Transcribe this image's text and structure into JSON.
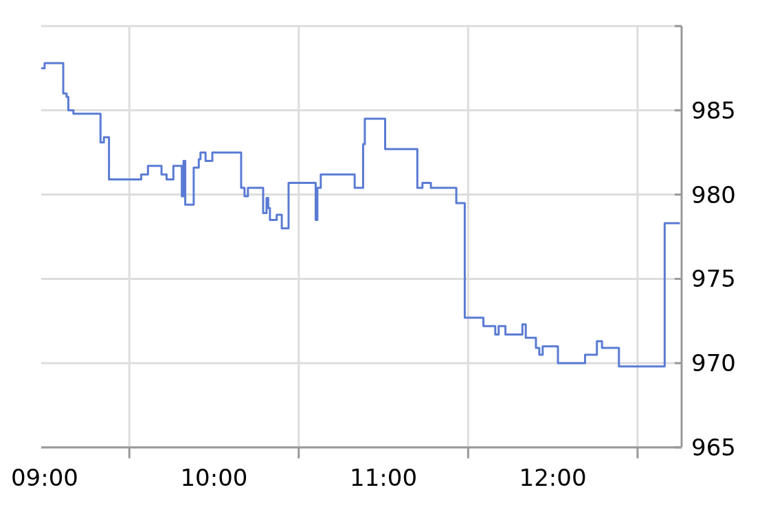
{
  "chart_data": {
    "type": "step",
    "x": [
      8.98,
      9.0,
      9.11,
      9.13,
      9.14,
      9.17,
      9.33,
      9.35,
      9.38,
      9.57,
      9.61,
      9.69,
      9.72,
      9.76,
      9.81,
      9.82,
      9.83,
      9.88,
      9.91,
      9.92,
      9.95,
      9.99,
      10.16,
      10.18,
      10.2,
      10.25,
      10.29,
      10.31,
      10.32,
      10.33,
      10.37,
      10.4,
      10.44,
      10.46,
      10.6,
      10.61,
      10.63,
      10.68,
      10.83,
      10.88,
      10.89,
      11.01,
      11.2,
      11.23,
      11.28,
      11.43,
      11.48,
      11.59,
      11.66,
      11.68,
      11.72,
      11.82,
      11.84,
      11.9,
      11.92,
      11.94,
      12.03,
      12.19,
      12.26,
      12.29,
      12.39,
      12.66,
      12.75
    ],
    "series": [
      {
        "color": "#5a7bd4",
        "values": [
          987.5,
          987.8,
          986.0,
          985.8,
          985.0,
          984.8,
          983.1,
          983.4,
          980.9,
          981.2,
          981.7,
          981.2,
          980.9,
          981.7,
          979.9,
          982.0,
          979.4,
          981.6,
          982.1,
          982.5,
          982.0,
          982.5,
          980.4,
          979.9,
          980.4,
          980.4,
          978.9,
          979.8,
          979.2,
          978.5,
          978.8,
          978.0,
          980.7,
          980.7,
          978.5,
          980.4,
          981.2,
          981.2,
          980.4,
          983.0,
          984.5,
          982.7,
          980.4,
          980.7,
          980.4,
          979.5,
          972.7,
          972.2,
          971.7,
          972.2,
          971.7,
          972.3,
          971.5,
          970.9,
          970.5,
          971.0,
          970.0,
          970.5,
          971.3,
          970.9,
          969.8,
          978.3,
          978.3
        ]
      }
    ],
    "xlim": [
      8.98,
      12.76
    ],
    "xticks": [
      {
        "value": 9,
        "label": "09:00"
      },
      {
        "value": 9.5,
        "label": null
      },
      {
        "value": 10,
        "label": "10:00"
      },
      {
        "value": 10.5,
        "label": null
      },
      {
        "value": 11,
        "label": "11:00"
      },
      {
        "value": 11.5,
        "label": null
      },
      {
        "value": 12,
        "label": "12:00"
      },
      {
        "value": 12.5,
        "label": null
      }
    ],
    "ylim": [
      965,
      990
    ],
    "yticks": [
      965,
      970,
      975,
      980,
      985,
      {
        "value": 990,
        "label": null
      }
    ],
    "grid": true,
    "marker": "none",
    "line_style": "solid"
  }
}
